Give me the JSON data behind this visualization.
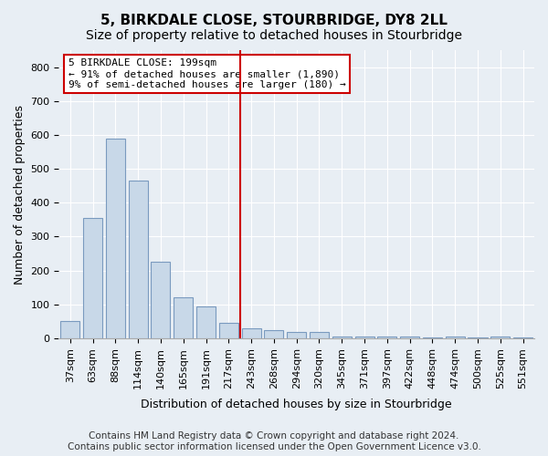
{
  "title": "5, BIRKDALE CLOSE, STOURBRIDGE, DY8 2LL",
  "subtitle": "Size of property relative to detached houses in Stourbridge",
  "xlabel": "Distribution of detached houses by size in Stourbridge",
  "ylabel": "Number of detached properties",
  "bar_color": "#c8d8e8",
  "bar_edge_color": "#7a9abf",
  "annotation_box_color": "#cc0000",
  "vline_color": "#cc0000",
  "vline_x": 8,
  "annotation_text": "5 BIRKDALE CLOSE: 199sqm\n← 91% of detached houses are smaller (1,890)\n9% of semi-detached houses are larger (180) →",
  "categories": [
    "37sqm",
    "63sqm",
    "88sqm",
    "114sqm",
    "140sqm",
    "165sqm",
    "191sqm",
    "217sqm",
    "243sqm",
    "268sqm",
    "294sqm",
    "320sqm",
    "345sqm",
    "371sqm",
    "397sqm",
    "422sqm",
    "448sqm",
    "474sqm",
    "500sqm",
    "525sqm",
    "551sqm"
  ],
  "values": [
    50,
    355,
    590,
    465,
    225,
    120,
    95,
    45,
    30,
    25,
    20,
    20,
    5,
    5,
    5,
    5,
    3,
    5,
    3,
    5,
    3
  ],
  "ylim": [
    0,
    850
  ],
  "yticks": [
    0,
    100,
    200,
    300,
    400,
    500,
    600,
    700,
    800
  ],
  "footer": "Contains HM Land Registry data © Crown copyright and database right 2024.\nContains public sector information licensed under the Open Government Licence v3.0.",
  "background_color": "#e8eef4",
  "plot_background_color": "#e8eef4",
  "title_fontsize": 11,
  "subtitle_fontsize": 10,
  "tick_fontsize": 8,
  "footer_fontsize": 7.5
}
